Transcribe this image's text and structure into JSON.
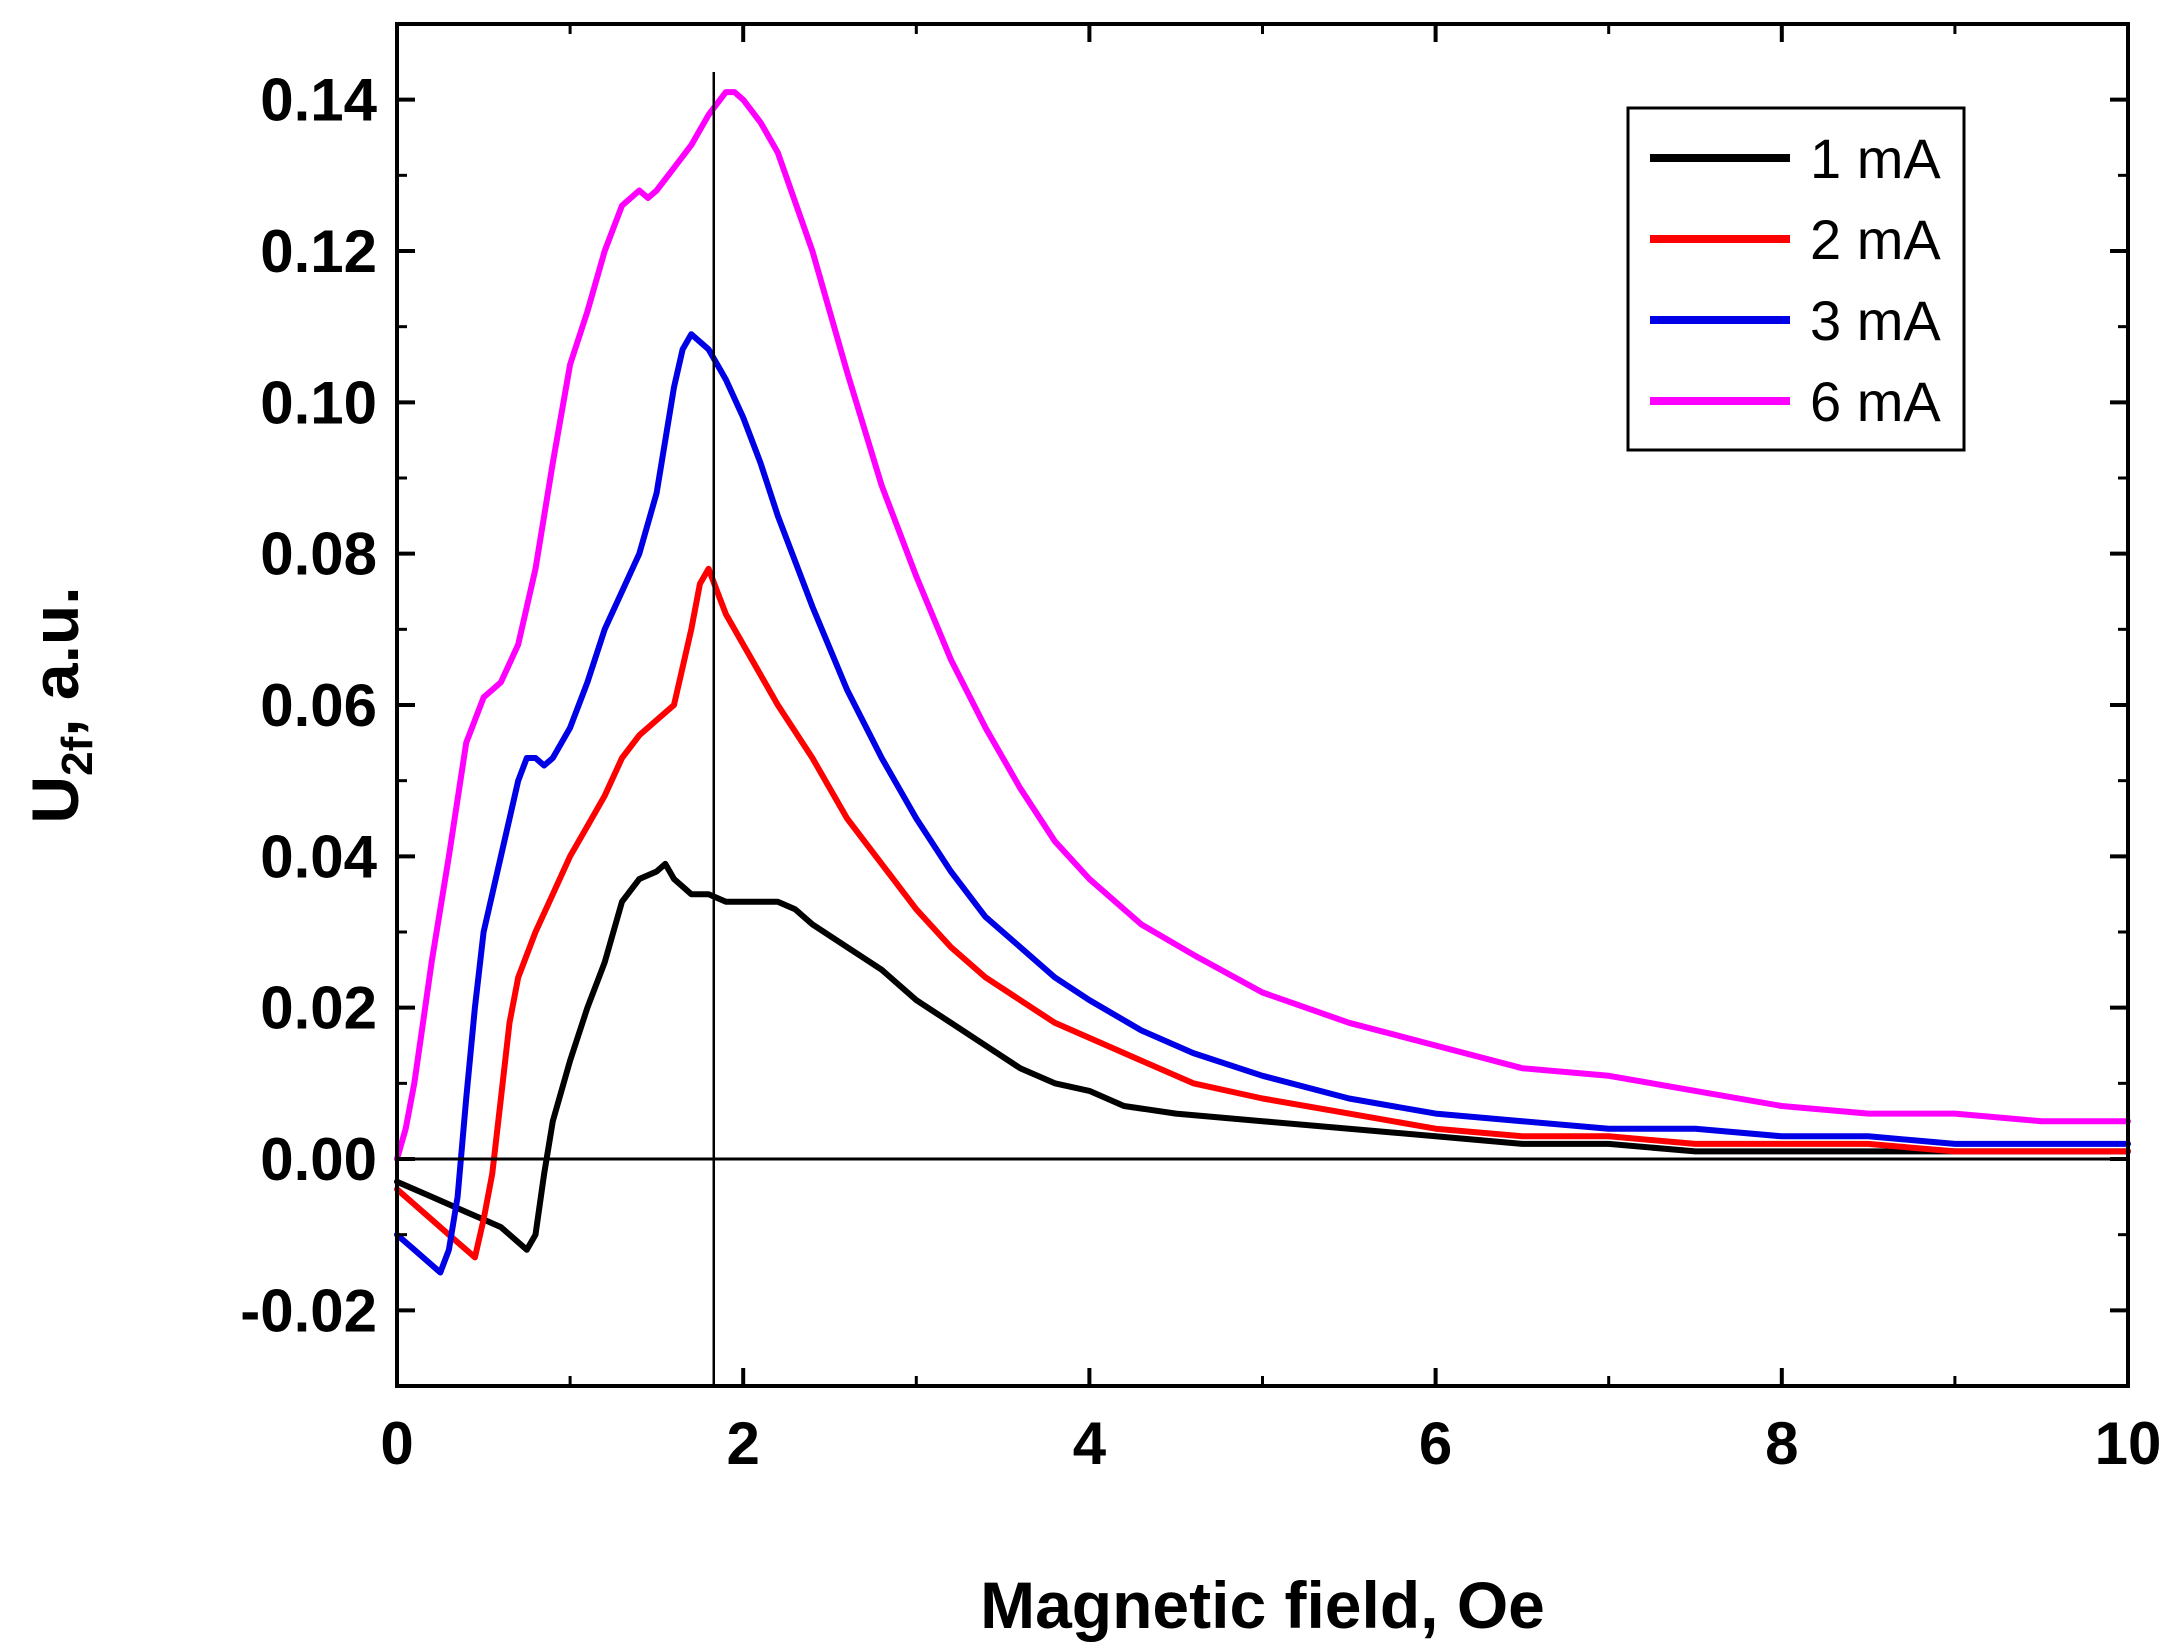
{
  "chart_data": {
    "type": "line",
    "title": "",
    "xlabel": "Magnetic field, Oe",
    "ylabel": {
      "main": "U",
      "subscript": "2f",
      "suffix": ", a.u."
    },
    "xlim": [
      0,
      10
    ],
    "ylim": [
      -0.03,
      0.15
    ],
    "xticks": [
      {
        "value": 0,
        "label": "0"
      },
      {
        "value": 2,
        "label": "2"
      },
      {
        "value": 4,
        "label": "4"
      },
      {
        "value": 6,
        "label": "6"
      },
      {
        "value": 8,
        "label": "8"
      },
      {
        "value": 10,
        "label": "10"
      }
    ],
    "yticks": [
      {
        "value": -0.02,
        "label": "-0.02"
      },
      {
        "value": 0.0,
        "label": "0.00"
      },
      {
        "value": 0.02,
        "label": "0.02"
      },
      {
        "value": 0.04,
        "label": "0.04"
      },
      {
        "value": 0.06,
        "label": "0.06"
      },
      {
        "value": 0.08,
        "label": "0.08"
      },
      {
        "value": 0.1,
        "label": "0.10"
      },
      {
        "value": 0.12,
        "label": "0.12"
      },
      {
        "value": 0.14,
        "label": "0.14"
      }
    ],
    "grid": false,
    "legend_position": "top-right",
    "reference_lines": {
      "horizontal_y": 0.0,
      "vertical_x": 1.83
    },
    "series": [
      {
        "name": "1 mA",
        "color": "#000000",
        "x": [
          0,
          0.1,
          0.2,
          0.3,
          0.4,
          0.5,
          0.6,
          0.7,
          0.75,
          0.8,
          0.85,
          0.9,
          1.0,
          1.1,
          1.2,
          1.3,
          1.4,
          1.5,
          1.55,
          1.6,
          1.7,
          1.8,
          1.9,
          2.0,
          2.1,
          2.2,
          2.3,
          2.4,
          2.6,
          2.8,
          3.0,
          3.2,
          3.4,
          3.6,
          3.8,
          4.0,
          4.2,
          4.5,
          5.0,
          5.5,
          6.0,
          6.5,
          7.0,
          7.5,
          8.0,
          8.5,
          9.0,
          9.5,
          10.0
        ],
        "y": [
          -0.003,
          -0.004,
          -0.005,
          -0.006,
          -0.007,
          -0.008,
          -0.009,
          -0.011,
          -0.012,
          -0.01,
          -0.002,
          0.005,
          0.013,
          0.02,
          0.026,
          0.034,
          0.037,
          0.038,
          0.039,
          0.037,
          0.035,
          0.035,
          0.034,
          0.034,
          0.034,
          0.034,
          0.033,
          0.031,
          0.028,
          0.025,
          0.021,
          0.018,
          0.015,
          0.012,
          0.01,
          0.009,
          0.007,
          0.006,
          0.005,
          0.004,
          0.003,
          0.002,
          0.002,
          0.001,
          0.001,
          0.001,
          0.001,
          0.001,
          0.001
        ]
      },
      {
        "name": "2 mA",
        "color": "#ff0000",
        "x": [
          0,
          0.1,
          0.2,
          0.3,
          0.4,
          0.45,
          0.5,
          0.55,
          0.6,
          0.65,
          0.7,
          0.8,
          0.9,
          1.0,
          1.1,
          1.2,
          1.3,
          1.4,
          1.5,
          1.6,
          1.7,
          1.75,
          1.8,
          1.85,
          1.9,
          2.0,
          2.1,
          2.2,
          2.4,
          2.6,
          2.8,
          3.0,
          3.2,
          3.4,
          3.6,
          3.8,
          4.0,
          4.3,
          4.6,
          5.0,
          5.5,
          6.0,
          6.5,
          7.0,
          7.5,
          8.0,
          8.5,
          9.0,
          9.5,
          10.0
        ],
        "y": [
          -0.004,
          -0.006,
          -0.008,
          -0.01,
          -0.012,
          -0.013,
          -0.008,
          -0.002,
          0.008,
          0.018,
          0.024,
          0.03,
          0.035,
          0.04,
          0.044,
          0.048,
          0.053,
          0.056,
          0.058,
          0.06,
          0.07,
          0.076,
          0.078,
          0.075,
          0.072,
          0.068,
          0.064,
          0.06,
          0.053,
          0.045,
          0.039,
          0.033,
          0.028,
          0.024,
          0.021,
          0.018,
          0.016,
          0.013,
          0.01,
          0.008,
          0.006,
          0.004,
          0.003,
          0.003,
          0.002,
          0.002,
          0.002,
          0.001,
          0.001,
          0.001
        ]
      },
      {
        "name": "3 mA",
        "color": "#0000e6",
        "x": [
          0,
          0.1,
          0.2,
          0.25,
          0.3,
          0.35,
          0.4,
          0.45,
          0.5,
          0.6,
          0.7,
          0.75,
          0.8,
          0.85,
          0.9,
          1.0,
          1.1,
          1.2,
          1.3,
          1.4,
          1.5,
          1.6,
          1.65,
          1.7,
          1.75,
          1.8,
          1.9,
          2.0,
          2.1,
          2.2,
          2.4,
          2.6,
          2.8,
          3.0,
          3.2,
          3.4,
          3.6,
          3.8,
          4.0,
          4.3,
          4.6,
          5.0,
          5.5,
          6.0,
          6.5,
          7.0,
          7.5,
          8.0,
          8.5,
          9.0,
          9.5,
          10.0
        ],
        "y": [
          -0.01,
          -0.012,
          -0.014,
          -0.015,
          -0.012,
          -0.005,
          0.008,
          0.02,
          0.03,
          0.04,
          0.05,
          0.053,
          0.053,
          0.052,
          0.053,
          0.057,
          0.063,
          0.07,
          0.075,
          0.08,
          0.088,
          0.102,
          0.107,
          0.109,
          0.108,
          0.107,
          0.103,
          0.098,
          0.092,
          0.085,
          0.073,
          0.062,
          0.053,
          0.045,
          0.038,
          0.032,
          0.028,
          0.024,
          0.021,
          0.017,
          0.014,
          0.011,
          0.008,
          0.006,
          0.005,
          0.004,
          0.004,
          0.003,
          0.003,
          0.002,
          0.002,
          0.002
        ]
      },
      {
        "name": "6 mA",
        "color": "#ff00ff",
        "x": [
          0,
          0.05,
          0.1,
          0.15,
          0.2,
          0.3,
          0.4,
          0.5,
          0.6,
          0.7,
          0.8,
          0.9,
          1.0,
          1.1,
          1.2,
          1.3,
          1.4,
          1.45,
          1.5,
          1.6,
          1.7,
          1.8,
          1.9,
          1.95,
          2.0,
          2.1,
          2.2,
          2.4,
          2.6,
          2.8,
          3.0,
          3.2,
          3.4,
          3.6,
          3.8,
          4.0,
          4.3,
          4.6,
          5.0,
          5.5,
          6.0,
          6.5,
          7.0,
          7.5,
          8.0,
          8.5,
          9.0,
          9.5,
          10.0
        ],
        "y": [
          0.0,
          0.004,
          0.01,
          0.018,
          0.026,
          0.04,
          0.055,
          0.061,
          0.063,
          0.068,
          0.078,
          0.092,
          0.105,
          0.112,
          0.12,
          0.126,
          0.128,
          0.127,
          0.128,
          0.131,
          0.134,
          0.138,
          0.141,
          0.141,
          0.14,
          0.137,
          0.133,
          0.12,
          0.104,
          0.089,
          0.077,
          0.066,
          0.057,
          0.049,
          0.042,
          0.037,
          0.031,
          0.027,
          0.022,
          0.018,
          0.015,
          0.012,
          0.011,
          0.009,
          0.007,
          0.006,
          0.006,
          0.005,
          0.005
        ]
      }
    ]
  }
}
